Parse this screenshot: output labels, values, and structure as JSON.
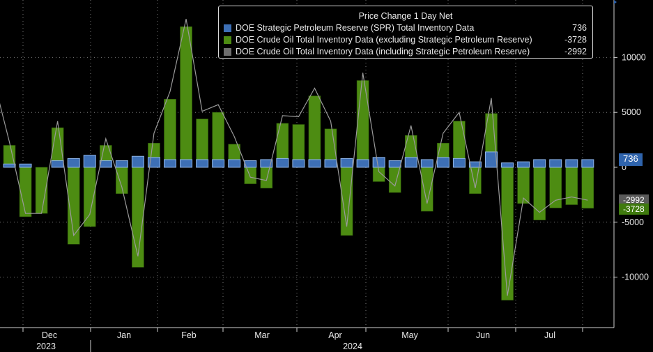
{
  "chart_data": {
    "type": "bar",
    "title": "Price Change 1 Day Net",
    "ylim": [
      -14500,
      15000
    ],
    "yticks": [
      -10000,
      -5000,
      0,
      5000,
      10000
    ],
    "ytick_labels": [
      "-10000",
      "-5000",
      "0",
      "5000",
      "10000"
    ],
    "grid": true,
    "legend_placement": "top-center",
    "x_tick_labels": [
      "Dec",
      "Jan",
      "Feb",
      "Mar",
      "Apr",
      "May",
      "Jun",
      "Jul"
    ],
    "year_labels": [
      "2023",
      "2024"
    ],
    "legend": {
      "title": "Price Change 1 Day Net",
      "entries": [
        {
          "name": "DOE Strategic Petroleum Reserve (SPR) Total Inventory Data",
          "value": "736",
          "color": "#3d6fb5"
        },
        {
          "name": "DOE Crude Oil Total Inventory Data (excluding Strategic Petroleum Reserve)",
          "value": "-3728",
          "color": "#4d8c12"
        },
        {
          "name": "DOE Crude Oil Total Inventory Data (including Strategic Petroleum Reserve)",
          "value": "-2992",
          "color": "#6e6e6e"
        }
      ]
    },
    "last_value_tags": [
      "736",
      "-2992",
      "-3728"
    ],
    "series": [
      {
        "name": "DOE Strategic Petroleum Reserve (SPR) Total Inventory Data",
        "color": "#3d6fb5",
        "values": [
          300,
          300,
          0,
          600,
          800,
          1100,
          600,
          600,
          1000,
          900,
          700,
          700,
          700,
          700,
          700,
          600,
          700,
          800,
          700,
          700,
          700,
          800,
          700,
          900,
          600,
          900,
          700,
          900,
          800,
          500,
          1400,
          400,
          500,
          700,
          700,
          700,
          700
        ]
      },
      {
        "name": "DOE Crude Oil Total Inventory Data (excluding Strategic Petroleum Reserve)",
        "color": "#4d8c12",
        "values": [
          2000,
          -4500,
          -4200,
          3600,
          -7000,
          -5400,
          2000,
          -2400,
          -9100,
          2200,
          6200,
          12800,
          4400,
          5000,
          2100,
          -1500,
          -1900,
          4000,
          3900,
          6500,
          3500,
          -6200,
          7900,
          -1300,
          -2300,
          2900,
          -4000,
          2200,
          4200,
          -2400,
          4900,
          -12100,
          -3300,
          -4800,
          -3700,
          -3400,
          -3728
        ]
      },
      {
        "name": "DOE Crude Oil Total Inventory Data (including Strategic Petroleum Reserve)",
        "color": "#6e6e6e",
        "values": [
          2300,
          -4200,
          -4200,
          4200,
          -6200,
          -4300,
          2600,
          -1800,
          -8100,
          3100,
          6900,
          13500,
          5100,
          5700,
          2800,
          -900,
          -1200,
          4700,
          4600,
          7200,
          4200,
          -5400,
          8600,
          -400,
          -1700,
          3800,
          -3300,
          3100,
          5000,
          -1900,
          6300,
          -11700,
          -2800,
          -4100,
          -3000,
          -2700,
          -2992
        ]
      }
    ]
  }
}
